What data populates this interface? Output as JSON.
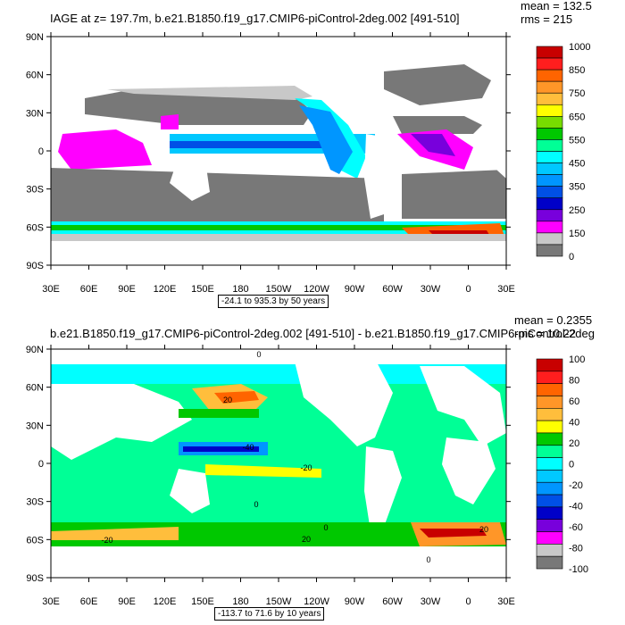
{
  "panels": [
    {
      "id": "top",
      "title": "IAGE at z= 197.7m, b.e21.B1850.f19_g17.CMIP6-piControl-2deg.002 [491-510]",
      "mean": "mean = 132.5",
      "rms": "rms = 215",
      "range": "-24.1 to 935.3 by 50 years",
      "lat_ticks": [
        "90N",
        "60N",
        "30N",
        "0",
        "30S",
        "60S",
        "90S"
      ],
      "lon_ticks": [
        "30E",
        "60E",
        "90E",
        "120E",
        "150E",
        "180",
        "150W",
        "120W",
        "90W",
        "60W",
        "30W",
        "0",
        "30E"
      ],
      "colorbar_labels": [
        "1000",
        "850",
        "750",
        "650",
        "550",
        "450",
        "350",
        "250",
        "150",
        "0"
      ],
      "colorbar_colors": [
        "#c80000",
        "#ff1e1e",
        "#ff6400",
        "#ff9628",
        "#ffbe3c",
        "#ffff00",
        "#78dc00",
        "#00c800",
        "#00ff96",
        "#00ffff",
        "#00c8ff",
        "#0096ff",
        "#0050e6",
        "#0000c8",
        "#7800dc",
        "#ff00ff",
        "#c8c8c8",
        "#787878"
      ],
      "contour_labels": []
    },
    {
      "id": "bottom",
      "title": "b.e21.B1850.f19_g17.CMIP6-piControl-2deg.002 [491-510] - b.e21.B1850.f19_g17.CMIP6-piControl-2deg",
      "mean": "mean = 0.2355",
      "rms": "rms = 10.22",
      "range": "-113.7 to 71.6 by 10 years",
      "lat_ticks": [
        "90N",
        "60N",
        "30N",
        "0",
        "30S",
        "60S",
        "90S"
      ],
      "lon_ticks": [
        "30E",
        "60E",
        "90E",
        "120E",
        "150E",
        "180",
        "150W",
        "120W",
        "90W",
        "60W",
        "30W",
        "0",
        "30E"
      ],
      "colorbar_labels": [
        "100",
        "80",
        "60",
        "40",
        "20",
        "0",
        "-20",
        "-40",
        "-60",
        "-80",
        "-100"
      ],
      "colorbar_colors": [
        "#c80000",
        "#ff1e1e",
        "#ff6400",
        "#ff9628",
        "#ffbe3c",
        "#ffff00",
        "#00c800",
        "#00ff96",
        "#00ffff",
        "#00c8ff",
        "#0096ff",
        "#0050e6",
        "#0000c8",
        "#7800dc",
        "#ff00ff",
        "#c8c8c8",
        "#787878"
      ],
      "contour_labels": [
        "0",
        "20",
        "-40",
        "-20",
        "0",
        "0",
        "20",
        "0",
        "20",
        "-20"
      ]
    }
  ],
  "colors": {
    "land": "#ffffff",
    "sea_ice_gray": "#808080"
  }
}
